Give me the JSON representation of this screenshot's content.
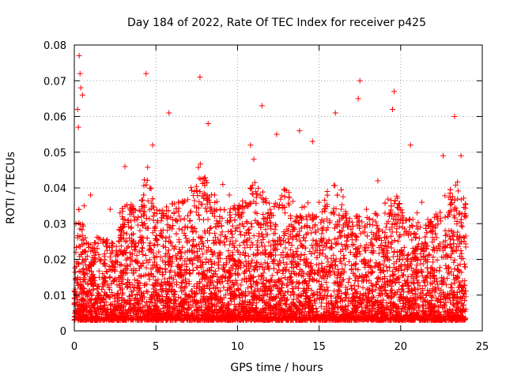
{
  "chart_data": {
    "type": "scatter",
    "title": "Day 184 of 2022, Rate Of TEC Index for receiver p425",
    "xlabel": "GPS time / hours",
    "ylabel": "ROTI / TECUs",
    "xlim": [
      0,
      25
    ],
    "ylim": [
      0,
      0.08
    ],
    "xticks": [
      0,
      5,
      10,
      15,
      20,
      25
    ],
    "xtick_labels": [
      "0",
      "5",
      "10",
      "15",
      "20",
      "25"
    ],
    "yticks": [
      0,
      0.01,
      0.02,
      0.03,
      0.04,
      0.05,
      0.06,
      0.07,
      0.08
    ],
    "ytick_labels": [
      "0",
      "0.01",
      "0.02",
      "0.03",
      "0.04",
      "0.05",
      "0.06",
      "0.07",
      "0.08"
    ],
    "grid": true,
    "marker": "+",
    "series": [
      {
        "color": "#ff0000",
        "x": [
          0.3,
          0.35,
          0.4,
          0.2,
          0.25,
          0.5,
          4.4,
          7.7,
          17.5,
          11.5,
          19.6,
          19.5,
          23.3,
          5.8,
          8.2,
          12.4,
          13.8,
          16.0,
          17.4,
          20.6,
          22.6,
          23.7,
          4.8,
          14.6,
          10.8,
          11.0,
          3.1,
          1.0,
          2.2,
          6.7,
          9.1,
          15.5,
          18.6,
          21.3,
          9.5,
          0.1,
          0.6,
          1.5,
          2.8,
          3.5,
          4.1,
          5.3,
          6.2,
          7.1,
          8.6,
          9.8,
          10.3,
          12.0,
          13.1,
          14.2,
          15.0,
          16.6,
          17.9,
          18.3,
          19.1,
          20.2,
          21.0,
          22.0,
          22.9,
          23.9
        ],
        "y": [
          0.077,
          0.072,
          0.068,
          0.062,
          0.057,
          0.066,
          0.072,
          0.071,
          0.07,
          0.063,
          0.067,
          0.062,
          0.06,
          0.061,
          0.058,
          0.055,
          0.056,
          0.061,
          0.065,
          0.052,
          0.049,
          0.049,
          0.052,
          0.053,
          0.052,
          0.048,
          0.046,
          0.038,
          0.034,
          0.036,
          0.041,
          0.039,
          0.042,
          0.036,
          0.038,
          0.03,
          0.035,
          0.026,
          0.033,
          0.029,
          0.032,
          0.028,
          0.031,
          0.033,
          0.038,
          0.035,
          0.03,
          0.034,
          0.028,
          0.032,
          0.036,
          0.03,
          0.034,
          0.031,
          0.029,
          0.027,
          0.033,
          0.029,
          0.032,
          0.026
        ]
      }
    ]
  }
}
